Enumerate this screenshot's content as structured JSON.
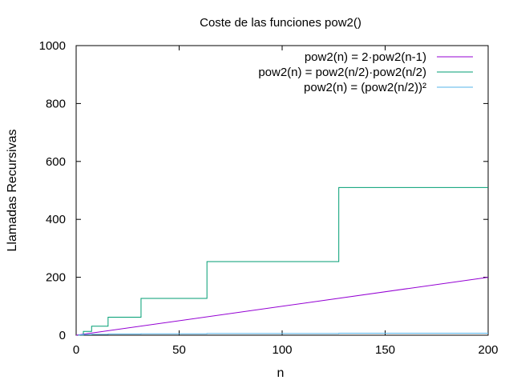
{
  "chart_data": {
    "type": "line",
    "title": "Coste de las funciones pow2()",
    "xlabel": "n",
    "ylabel": "Llamadas Recursivas",
    "xlim": [
      0,
      200
    ],
    "ylim": [
      0,
      1000
    ],
    "xticks": [
      0,
      50,
      100,
      150,
      200
    ],
    "yticks": [
      0,
      200,
      400,
      600,
      800,
      1000
    ],
    "grid": false,
    "legend_position": "top-right",
    "series": [
      {
        "name": "pow2(n) = 2·pow2(n-1)",
        "color": "#9400d3",
        "x": [
          0,
          200
        ],
        "y": [
          0,
          200
        ]
      },
      {
        "name": "pow2(n) = pow2(n/2)·pow2(n/2)",
        "color": "#009e73",
        "x": [
          1,
          1.5,
          1.5,
          3.5,
          3.5,
          7.5,
          7.5,
          15.5,
          15.5,
          31.5,
          31.5,
          63.5,
          63.5,
          127.5,
          127.5,
          200
        ],
        "y": [
          0,
          0,
          1,
          1,
          13,
          13,
          31,
          31,
          62,
          62,
          127,
          127,
          254,
          254,
          510,
          510
        ]
      },
      {
        "name": "pow2(n) = (pow2(n/2))²",
        "color": "#56b4e9",
        "x": [
          1,
          1.5,
          1.5,
          3.5,
          3.5,
          7.5,
          7.5,
          15.5,
          15.5,
          31.5,
          31.5,
          63.5,
          63.5,
          127.5,
          127.5,
          200
        ],
        "y": [
          0,
          0,
          1,
          1,
          2,
          2,
          3,
          3,
          4,
          4,
          5,
          5,
          6,
          6,
          7,
          7
        ]
      }
    ]
  }
}
